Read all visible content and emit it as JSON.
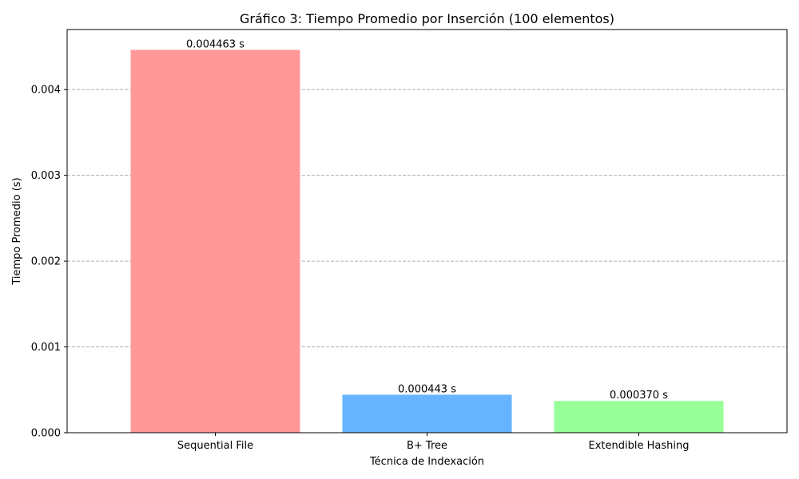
{
  "chart_data": {
    "type": "bar",
    "title": "Gráfico 3: Tiempo Promedio por Inserción (100 elementos)",
    "xlabel": "Técnica de Indexación",
    "ylabel": "Tiempo Promedio (s)",
    "categories": [
      "Sequential File",
      "B+ Tree",
      "Extendible Hashing"
    ],
    "values": [
      0.004463,
      0.000443,
      0.00037
    ],
    "value_labels": [
      "0.004463 s",
      "0.000443 s",
      "0.000370 s"
    ],
    "colors": [
      "#ff9999",
      "#66b3ff",
      "#99ff99"
    ],
    "ylim": [
      0,
      0.0047
    ],
    "yticks": [
      0,
      0.001,
      0.002,
      0.003,
      0.004
    ],
    "ytick_labels": [
      "0.000",
      "0.001",
      "0.002",
      "0.003",
      "0.004"
    ],
    "grid": "y-dashed",
    "legend": "none"
  }
}
